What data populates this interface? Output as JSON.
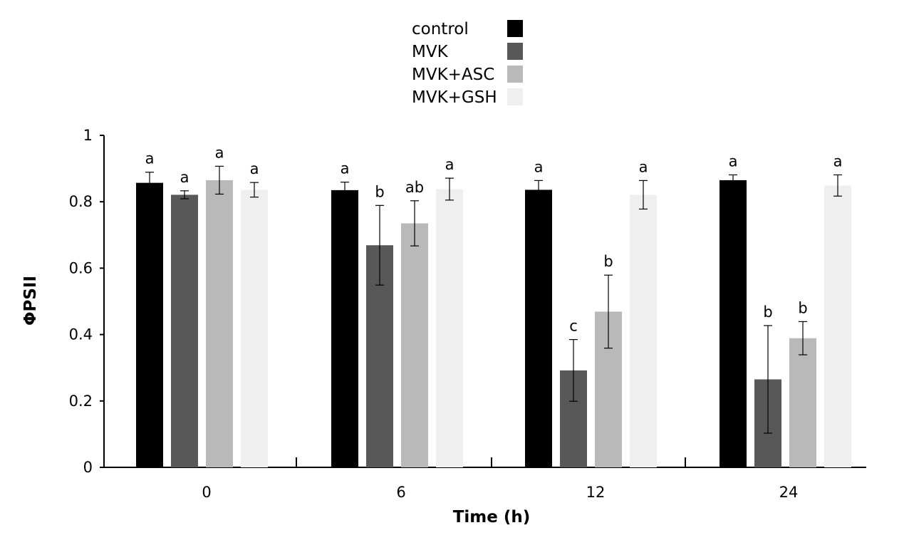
{
  "chart_data": {
    "type": "bar",
    "title": "",
    "xlabel": "Time (h)",
    "ylabel": "ΦPSII",
    "ylim": [
      0,
      1
    ],
    "yticks": [
      "0",
      "0.2",
      "0.4",
      "0.6",
      "0.8",
      "1"
    ],
    "categories": [
      "0",
      "6",
      "12",
      "24"
    ],
    "legend_position": "top-center",
    "series": [
      {
        "name": "control",
        "color": "#000000",
        "values": [
          0.857,
          0.835,
          0.836,
          0.865
        ],
        "errors": [
          0.032,
          0.024,
          0.028,
          0.016
        ],
        "letters": [
          "a",
          "a",
          "a",
          "a"
        ]
      },
      {
        "name": "MVK",
        "color": "#585858",
        "values": [
          0.821,
          0.669,
          0.292,
          0.265
        ],
        "errors": [
          0.012,
          0.12,
          0.093,
          0.162
        ],
        "letters": [
          "a",
          "b",
          "c",
          "b"
        ]
      },
      {
        "name": "MVK+ASC",
        "color": "#b9b9b9",
        "values": [
          0.865,
          0.735,
          0.469,
          0.389
        ],
        "errors": [
          0.042,
          0.068,
          0.11,
          0.05
        ],
        "letters": [
          "a",
          "ab",
          "b",
          "b"
        ]
      },
      {
        "name": "MVK+GSH",
        "color": "#efefef",
        "values": [
          0.836,
          0.838,
          0.821,
          0.849
        ],
        "errors": [
          0.022,
          0.033,
          0.043,
          0.032
        ],
        "letters": [
          "a",
          "a",
          "a",
          "a"
        ]
      }
    ]
  }
}
